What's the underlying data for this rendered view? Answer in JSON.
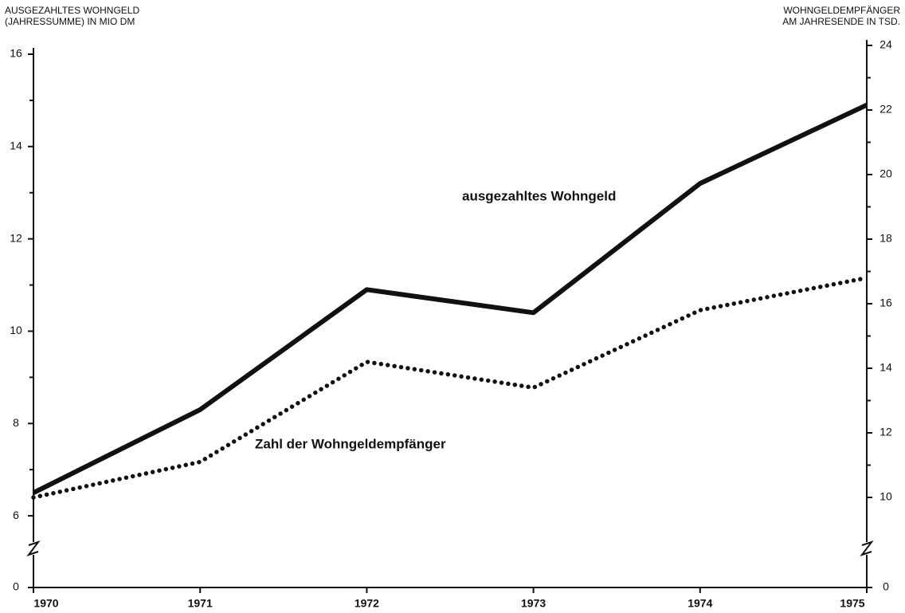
{
  "chart_data": {
    "type": "line",
    "y_axis_title": [
      "AUSGEZAHLTES WOHNGELD",
      "(JAHRESSUMME) IN MIO DM"
    ],
    "y2_axis_title": [
      "WOHNGELDEMPFÄNGER",
      "AM JAHRESENDE IN TSD."
    ],
    "x": [
      1970,
      1971,
      1972,
      1973,
      1974,
      1975
    ],
    "xlim": [
      1970,
      1975
    ],
    "xticks": [
      1970,
      1971,
      1972,
      1973,
      1974,
      1975
    ],
    "ylim": [
      0,
      16
    ],
    "ybreak": [
      0,
      5
    ],
    "yticks": [
      0,
      6,
      8,
      10,
      12,
      14,
      16
    ],
    "yminor_ticks": [
      7,
      9,
      11,
      13,
      15
    ],
    "y2lim": [
      0,
      24
    ],
    "y2break": [
      0,
      8
    ],
    "y2ticks": [
      0,
      10,
      12,
      14,
      16,
      18,
      20,
      22,
      24
    ],
    "y2minor_ticks": [
      11,
      13,
      15,
      17,
      19,
      21,
      23
    ],
    "series": [
      {
        "name": "ausgezahltes Wohngeld",
        "color": "#111111",
        "style": "solid",
        "values": [
          6.5,
          8.3,
          10.9,
          10.4,
          13.2,
          14.9
        ]
      },
      {
        "name": "Zahl der Wohngeldempfänger",
        "color": "#111111",
        "style": "dotted",
        "axis": "y2",
        "values": [
          10.0,
          11.1,
          14.2,
          13.4,
          15.8,
          16.8
        ]
      }
    ]
  }
}
